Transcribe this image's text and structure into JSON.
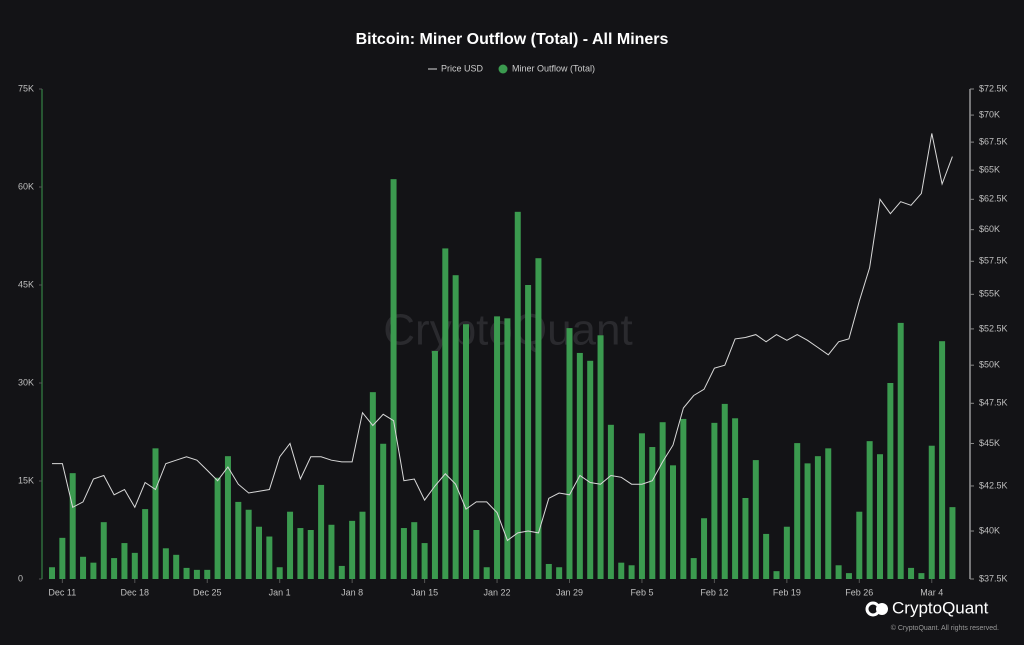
{
  "chart_data": {
    "type": "bar",
    "title": "Bitcoin: Miner Outflow (Total) - All Miners",
    "watermark": "CryptoQuant",
    "brand": "CryptoQuant",
    "copyright": "© CryptoQuant. All rights reserved.",
    "categories": [
      null,
      "Dec 11",
      null,
      null,
      null,
      null,
      null,
      null,
      "Dec 18",
      null,
      null,
      null,
      null,
      null,
      null,
      "Dec 25",
      null,
      null,
      null,
      null,
      null,
      null,
      "Jan 1",
      null,
      null,
      null,
      null,
      null,
      null,
      "Jan 8",
      null,
      null,
      null,
      null,
      null,
      null,
      "Jan 15",
      null,
      null,
      null,
      null,
      null,
      null,
      "Jan 22",
      null,
      null,
      null,
      null,
      null,
      null,
      "Jan 29",
      null,
      null,
      null,
      null,
      null,
      null,
      "Feb 5",
      null,
      null,
      null,
      null,
      null,
      null,
      "Feb 12",
      null,
      null,
      null,
      null,
      null,
      null,
      "Feb 19",
      null,
      null,
      null,
      null,
      null,
      null,
      "Feb 26",
      null,
      null,
      null,
      null,
      null,
      null,
      "Mar 4",
      null,
      null
    ],
    "series": [
      {
        "name": "Price USD",
        "type": "line",
        "axis": "y2",
        "color": "#d9d9d9",
        "values": [
          43800,
          43800,
          41300,
          41600,
          42900,
          43100,
          42000,
          42300,
          41300,
          42700,
          42300,
          43800,
          44000,
          44200,
          44000,
          43400,
          42800,
          43600,
          42600,
          42100,
          42200,
          42300,
          44200,
          45000,
          42900,
          44200,
          44200,
          44000,
          43900,
          43900,
          46900,
          46100,
          46800,
          46400,
          42800,
          42900,
          41700,
          42500,
          43200,
          42600,
          41200,
          41600,
          41600,
          41000,
          39500,
          39900,
          40000,
          39900,
          41800,
          42100,
          42000,
          43100,
          42700,
          42600,
          43100,
          43000,
          42600,
          42600,
          42800,
          43900,
          44900,
          47200,
          48000,
          48400,
          49800,
          50000,
          51800,
          51900,
          52100,
          51600,
          52100,
          51700,
          52100,
          51700,
          51200,
          50700,
          51600,
          51800,
          54500,
          57000,
          62500,
          61300,
          62300,
          62000,
          63000,
          68300,
          63800,
          66200
        ]
      },
      {
        "name": "Miner Outflow (Total)",
        "type": "bar",
        "axis": "y",
        "color": "#3b9a4f",
        "values": [
          1800,
          6300,
          16200,
          3400,
          2500,
          8700,
          3200,
          5500,
          4000,
          10700,
          20000,
          4700,
          3700,
          1700,
          1400,
          1400,
          15500,
          18800,
          11800,
          10600,
          8000,
          6500,
          1800,
          10300,
          7800,
          7500,
          14400,
          8300,
          2000,
          8900,
          10300,
          28600,
          20700,
          61200,
          7800,
          8700,
          5500,
          34900,
          50600,
          46500,
          39000,
          7500,
          1800,
          40200,
          39900,
          56200,
          45000,
          49100,
          2300,
          1800,
          38400,
          34600,
          33400,
          37300,
          23600,
          2500,
          2100,
          22300,
          20200,
          24000,
          17400,
          24500,
          3200,
          9300,
          23900,
          26800,
          24600,
          12400,
          18200,
          6900,
          1200,
          8000,
          20800,
          17700,
          18800,
          20000,
          2100,
          900,
          10300,
          21100,
          19100,
          30000,
          39200,
          1700,
          900,
          20400,
          36400,
          11000
        ]
      }
    ],
    "ylim": [
      0,
      75000
    ],
    "yticks": [
      {
        "value": 0,
        "label": "0"
      },
      {
        "value": 15000,
        "label": "15K"
      },
      {
        "value": 30000,
        "label": "30K"
      },
      {
        "value": 45000,
        "label": "45K"
      },
      {
        "value": 60000,
        "label": "60K"
      },
      {
        "value": 75000,
        "label": "75K"
      }
    ],
    "y2lim": [
      37500,
      72500
    ],
    "y2scale": "log",
    "y2ticks": [
      {
        "value": 37500,
        "label": "$37.5K"
      },
      {
        "value": 40000,
        "label": "$40K"
      },
      {
        "value": 42500,
        "label": "$42.5K"
      },
      {
        "value": 45000,
        "label": "$45K"
      },
      {
        "value": 47500,
        "label": "$47.5K"
      },
      {
        "value": 50000,
        "label": "$50K"
      },
      {
        "value": 52500,
        "label": "$52.5K"
      },
      {
        "value": 55000,
        "label": "$55K"
      },
      {
        "value": 57500,
        "label": "$57.5K"
      },
      {
        "value": 60000,
        "label": "$60K"
      },
      {
        "value": 62500,
        "label": "$62.5K"
      },
      {
        "value": 65000,
        "label": "$65K"
      },
      {
        "value": 67500,
        "label": "$67.5K"
      },
      {
        "value": 70000,
        "label": "$70K"
      },
      {
        "value": 72500,
        "label": "$72.5K"
      }
    ],
    "grid": false
  }
}
